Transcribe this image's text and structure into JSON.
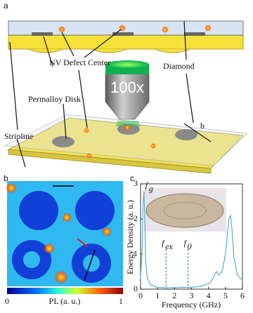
{
  "panel_a": {
    "label": "a",
    "nv": "NV Defect Center",
    "diamond": "Diamond",
    "permalloy": "Permalloy Disk",
    "stripline": "Stripline",
    "objective": "100x",
    "dim": "b"
  },
  "panel_b": {
    "label": "b",
    "colorbar": {
      "label": "PL (a. u.)",
      "ticks": [
        0,
        1
      ]
    }
  },
  "chart_data": {
    "type": "line",
    "label": "c",
    "xlabel": "Frequency (GHz)",
    "ylabel": "Energy Density (a. u.)",
    "x": [
      0,
      0.1,
      0.15,
      0.2,
      0.25,
      0.3,
      0.4,
      0.6,
      1,
      1.5,
      2,
      2.5,
      3,
      3.5,
      4,
      4.2,
      4.4,
      4.5,
      4.6,
      4.8,
      5,
      5.1,
      5.2,
      5.3,
      5.4,
      5.5,
      5.7,
      6
    ],
    "values": [
      0.3,
      1.2,
      2.5,
      2.8,
      2.0,
      0.8,
      0.3,
      0.12,
      0.05,
      0.04,
      0.04,
      0.05,
      0.05,
      0.08,
      0.15,
      0.25,
      0.45,
      0.5,
      0.4,
      0.5,
      1.0,
      1.5,
      2.0,
      2.1,
      1.6,
      0.9,
      0.4,
      0.25
    ],
    "color": "#5aa9d6",
    "xlim": [
      0,
      6
    ],
    "ylim": [
      0,
      3
    ],
    "xticks": [
      0,
      1,
      2,
      3,
      4,
      5,
      6
    ],
    "yticks": [
      0,
      1,
      2,
      3
    ],
    "annotations": [
      {
        "text": "f",
        "sub": "g",
        "x": 0.2,
        "y": 2.95,
        "dashed": false
      },
      {
        "text": "f",
        "sub": "ex",
        "x": 1.5,
        "y": 1.3,
        "dashed": true
      },
      {
        "text": "f",
        "sub": "0",
        "x": 2.8,
        "y": 1.3,
        "dashed": true
      }
    ]
  }
}
